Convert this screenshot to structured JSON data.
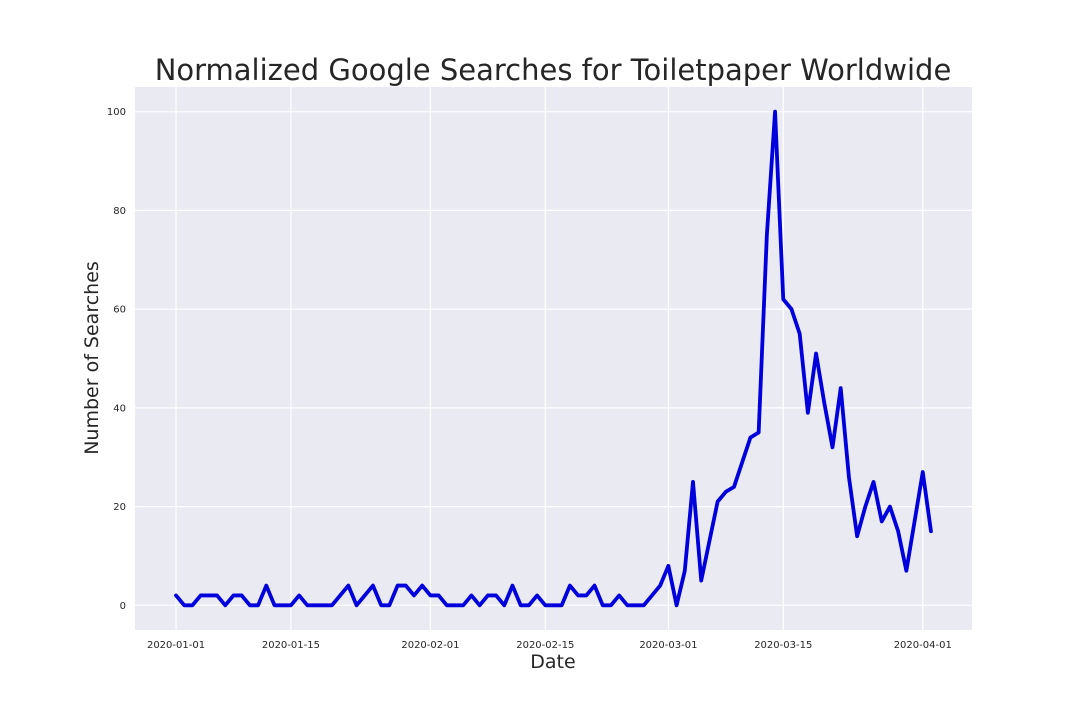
{
  "chart_data": {
    "type": "line",
    "title": "Normalized Google Searches for Toiletpaper Worldwide",
    "xlabel": "Date",
    "ylabel": "Number of Searches",
    "xlim": [
      "2019-12-27",
      "2020-04-07"
    ],
    "ylim": [
      -5,
      105
    ],
    "x_ticks": [
      "2020-01-01",
      "2020-01-15",
      "2020-02-01",
      "2020-02-15",
      "2020-03-01",
      "2020-03-15",
      "2020-04-01"
    ],
    "y_ticks": [
      0,
      20,
      40,
      60,
      80,
      100
    ],
    "grid": true,
    "background": "#eaeaf2",
    "grid_color": "#ffffff",
    "line_color": "#0000dd",
    "start_date": "2020-01-01",
    "series": [
      {
        "name": "",
        "values": [
          2,
          0,
          0,
          2,
          2,
          2,
          0,
          2,
          2,
          0,
          0,
          4,
          0,
          0,
          0,
          2,
          0,
          0,
          0,
          0,
          2,
          4,
          0,
          2,
          4,
          0,
          0,
          4,
          4,
          2,
          4,
          2,
          2,
          0,
          0,
          0,
          2,
          0,
          2,
          2,
          0,
          4,
          0,
          0,
          2,
          0,
          0,
          0,
          4,
          2,
          2,
          4,
          0,
          0,
          2,
          0,
          0,
          0,
          2,
          4,
          8,
          0,
          7,
          25,
          5,
          13,
          21,
          23,
          24,
          29,
          34,
          35,
          75,
          100,
          62,
          60,
          55,
          39,
          51,
          41,
          32,
          44,
          26,
          14,
          20,
          25,
          17,
          20,
          15,
          7,
          17,
          27,
          15
        ]
      }
    ]
  }
}
